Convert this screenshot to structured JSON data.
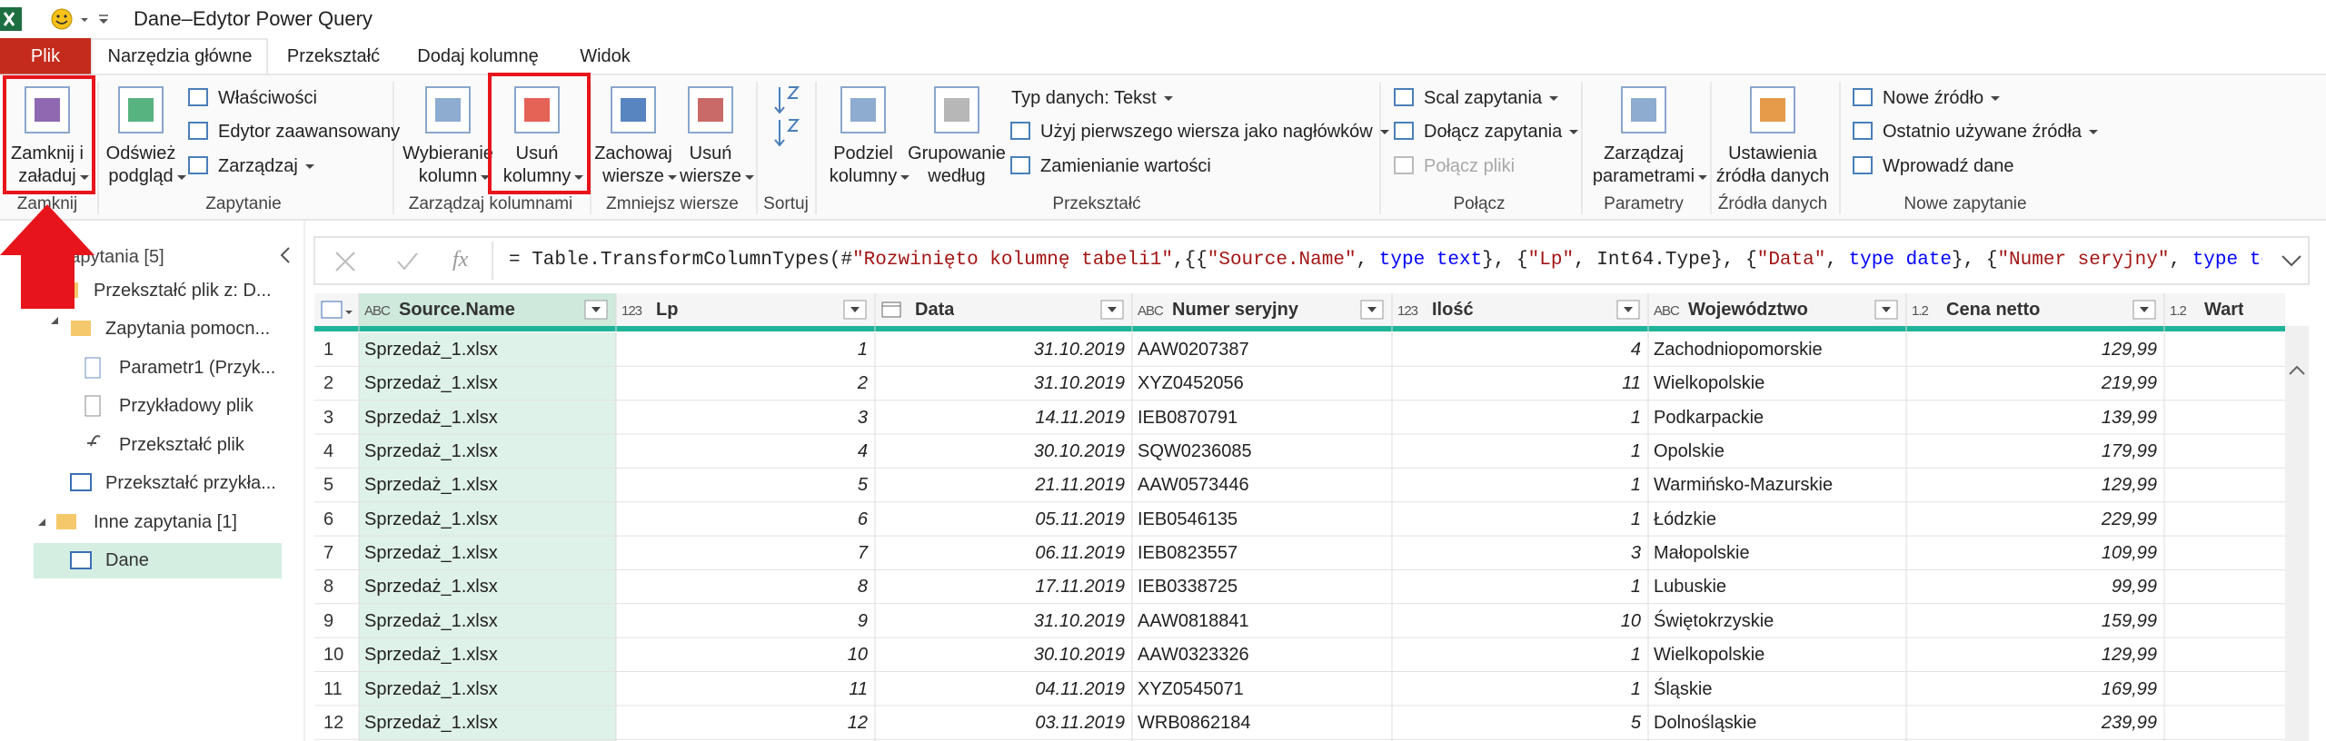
{
  "title_bar": {
    "title": "Dane–Edytor Power Query"
  },
  "tabs": [
    "Plik",
    "Narzędzia główne",
    "Przekształć",
    "Dodaj kolumnę",
    "Widok"
  ],
  "ribbon": {
    "groups": [
      {
        "label": "Zamknij",
        "items": [
          {
            "lines": [
              "Zamknij i",
              "załaduj"
            ],
            "dropdown": true
          }
        ]
      },
      {
        "label": "Zapytanie",
        "items": [
          {
            "lines": [
              "Odśwież",
              "podgląd"
            ],
            "dropdown": true
          },
          {
            "lines": [
              "Właściwości"
            ]
          },
          {
            "lines": [
              "Edytor zaawansowany"
            ]
          },
          {
            "lines": [
              "Zarządzaj"
            ],
            "dropdown": true
          }
        ]
      },
      {
        "label": "Zarządzaj kolumnami",
        "items": [
          {
            "lines": [
              "Wybieranie",
              "kolumn"
            ],
            "dropdown": true
          },
          {
            "lines": [
              "Usuń",
              "kolumny"
            ],
            "dropdown": true
          }
        ]
      },
      {
        "label": "Zmniejsz wiersze",
        "items": [
          {
            "lines": [
              "Zachowaj",
              "wiersze"
            ],
            "dropdown": true
          },
          {
            "lines": [
              "Usuń",
              "wiersze"
            ],
            "dropdown": true
          }
        ]
      },
      {
        "label": "Sortuj",
        "items": []
      },
      {
        "label": "Przekształć",
        "items": [
          {
            "lines": [
              "Podziel",
              "kolumny"
            ],
            "dropdown": true
          },
          {
            "lines": [
              "Grupowanie",
              "według"
            ]
          },
          {
            "lines": [
              "Typ danych: Tekst"
            ],
            "dropdown": true
          },
          {
            "lines": [
              "Użyj pierwszego wiersza jako nagłówków"
            ],
            "dropdown": true
          },
          {
            "lines": [
              "Zamienianie wartości"
            ]
          }
        ]
      },
      {
        "label": "Połącz",
        "items": [
          {
            "lines": [
              "Scal zapytania"
            ],
            "dropdown": true
          },
          {
            "lines": [
              "Dołącz zapytania"
            ],
            "dropdown": true
          },
          {
            "lines": [
              "Połącz pliki"
            ],
            "disabled": true
          }
        ]
      },
      {
        "label": "Parametry",
        "items": [
          {
            "lines": [
              "Zarządzaj",
              "parametrami"
            ],
            "dropdown": true
          }
        ]
      },
      {
        "label": "Źródła danych",
        "items": [
          {
            "lines": [
              "Ustawienia",
              "źródła danych"
            ]
          }
        ]
      },
      {
        "label": "Nowe zapytanie",
        "items": [
          {
            "lines": [
              "Nowe źródło"
            ],
            "dropdown": true
          },
          {
            "lines": [
              "Ostatnio używane źródła"
            ],
            "dropdown": true
          },
          {
            "lines": [
              "Wprowadź dane"
            ]
          }
        ]
      }
    ]
  },
  "queries": {
    "header": "Zapytania [5]",
    "items": [
      "Przekształć plik z: D...",
      "Zapytania pomocn...",
      "Parametr1 (Przyk...",
      "Przykładowy plik",
      "Przekształć plik",
      "Przekształć przykła...",
      "Inne zapytania [1]",
      "Dane"
    ]
  },
  "formula_bar": {
    "fx": "fx",
    "formula": "= Table.TransformColumnTypes(#\"Rozwinięto kolumnę tabeli1\",{{\"Source.Name\", type text}, {\"Lp\", Int64.Type}, {\"Data\", type date}, {\"Numer seryjny\", type text},"
  },
  "table": {
    "columns": [
      {
        "icon": "ABC",
        "name": "Source.Name",
        "align": "left"
      },
      {
        "icon": "123",
        "name": "Lp",
        "align": "right"
      },
      {
        "icon": null,
        "name": "Data",
        "align": "right"
      },
      {
        "icon": "ABC",
        "name": "Numer seryjny",
        "align": "left"
      },
      {
        "icon": "123",
        "name": "Ilość",
        "align": "right"
      },
      {
        "icon": "ABC",
        "name": "Województwo",
        "align": "left"
      },
      {
        "icon": "1.2",
        "name": "Cena netto",
        "align": "right"
      },
      {
        "icon": "1.2",
        "name": "Wartość netto",
        "align": "right"
      }
    ],
    "row_numbers": [
      1,
      2,
      3,
      4,
      5,
      6,
      7,
      8,
      9,
      10,
      11,
      12
    ],
    "rows": [
      [
        "Sprzedaż_1.xlsx",
        1,
        "31.10.2019",
        "AAW0207387",
        4,
        "Zachodniopomorskie",
        "129,99"
      ],
      [
        "Sprzedaż_1.xlsx",
        2,
        "31.10.2019",
        "XYZ0452056",
        11,
        "Wielkopolskie",
        "219,99"
      ],
      [
        "Sprzedaż_1.xlsx",
        3,
        "14.11.2019",
        "IEB0870791",
        1,
        "Podkarpackie",
        "139,99"
      ],
      [
        "Sprzedaż_1.xlsx",
        4,
        "30.10.2019",
        "SQW0236085",
        1,
        "Opolskie",
        "179,99"
      ],
      [
        "Sprzedaż_1.xlsx",
        5,
        "21.11.2019",
        "AAW0573446",
        1,
        "Warmińsko-Mazurskie",
        "129,99"
      ],
      [
        "Sprzedaż_1.xlsx",
        6,
        "05.11.2019",
        "IEB0546135",
        1,
        "Łódzkie",
        "229,99"
      ],
      [
        "Sprzedaż_1.xlsx",
        7,
        "06.11.2019",
        "IEB0823557",
        3,
        "Małopolskie",
        "109,99"
      ],
      [
        "Sprzedaż_1.xlsx",
        8,
        "17.11.2019",
        "IEB0338725",
        1,
        "Lubuskie",
        "99,99"
      ],
      [
        "Sprzedaż_1.xlsx",
        9,
        "31.10.2019",
        "AAW0818841",
        10,
        "Świętokrzyskie",
        "159,99"
      ],
      [
        "Sprzedaż_1.xlsx",
        10,
        "30.10.2019",
        "AAW0323326",
        1,
        "Wielkopolskie",
        "129,99"
      ],
      [
        "Sprzedaż_1.xlsx",
        11,
        "04.11.2019",
        "XYZ0545071",
        1,
        "Śląskie",
        "169,99"
      ],
      [
        "Sprzedaż_1.xlsx",
        12,
        "03.11.2019",
        "WRB0862184",
        5,
        "Dolnośląskie",
        "239,99"
      ]
    ]
  }
}
